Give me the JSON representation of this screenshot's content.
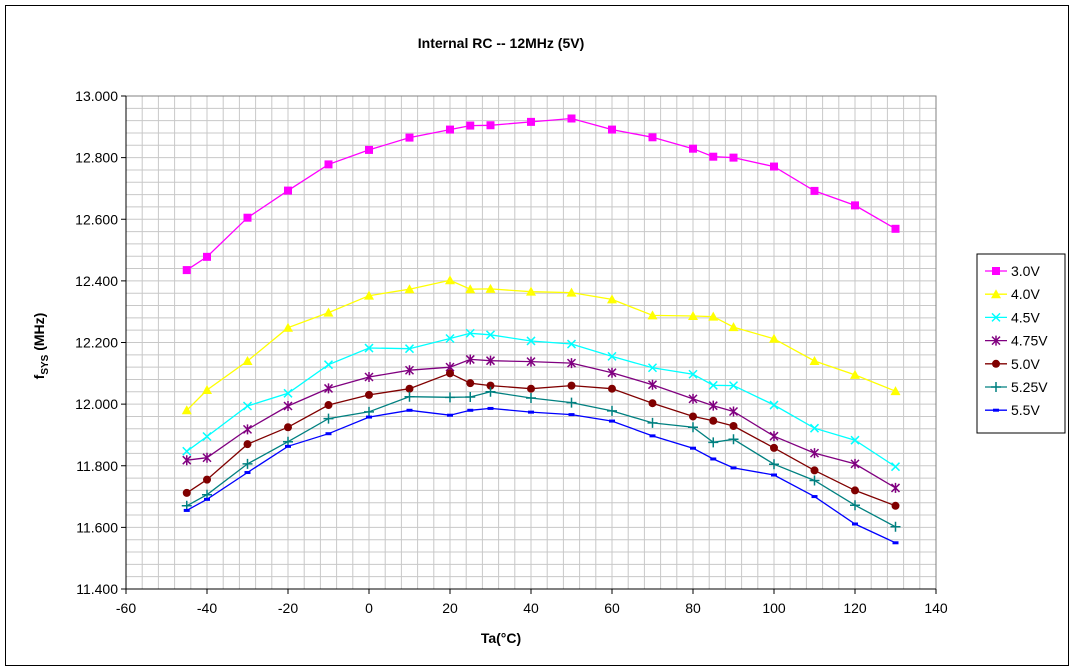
{
  "chart_data": {
    "type": "line",
    "title": "Internal RC -- 12MHz (5V)",
    "xlabel": "Ta(°C)",
    "ylabel": "fSYS (MHz)",
    "ylabel_main": "f",
    "ylabel_sub": "SYS",
    "ylabel_unit": " (MHz)",
    "xlim": [
      -60,
      140
    ],
    "ylim": [
      11.4,
      13.0
    ],
    "x_ticks": [
      -60,
      -40,
      -20,
      0,
      20,
      40,
      60,
      80,
      100,
      120,
      140
    ],
    "x_tick_labels": [
      "-60",
      "-40",
      "-20",
      "0",
      "20",
      "40",
      "60",
      "80",
      "100",
      "120",
      "140"
    ],
    "y_ticks": [
      11.4,
      11.6,
      11.8,
      12.0,
      12.2,
      12.4,
      12.6,
      12.8,
      13.0
    ],
    "y_tick_labels": [
      "11.400",
      "11.600",
      "11.800",
      "12.000",
      "12.200",
      "12.400",
      "12.600",
      "12.800",
      "13.000"
    ],
    "grid": true,
    "legend_position": "right",
    "x": [
      -45,
      -40,
      -30,
      -20,
      -10,
      0,
      10,
      20,
      25,
      30,
      40,
      50,
      60,
      70,
      80,
      85,
      90,
      100,
      110,
      120,
      130
    ],
    "series": [
      {
        "name": "3.0V",
        "color": "#ff00ff",
        "marker": "square",
        "values": [
          12.435,
          12.478,
          12.605,
          12.693,
          12.778,
          12.825,
          12.865,
          12.891,
          12.904,
          12.905,
          12.916,
          12.927,
          12.891,
          12.866,
          12.829,
          12.803,
          12.8,
          12.771,
          12.692,
          12.645,
          12.569
        ]
      },
      {
        "name": "4.0V",
        "color": "#ffff00",
        "marker": "triangle",
        "values": [
          11.98,
          12.046,
          12.14,
          12.248,
          12.297,
          12.352,
          12.373,
          12.402,
          12.373,
          12.374,
          12.365,
          12.362,
          12.34,
          12.288,
          12.286,
          12.284,
          12.25,
          12.212,
          12.14,
          12.095,
          12.042
        ]
      },
      {
        "name": "4.5V",
        "color": "#00ffff",
        "marker": "x",
        "values": [
          11.847,
          11.895,
          11.994,
          12.035,
          12.128,
          12.182,
          12.18,
          12.213,
          12.23,
          12.225,
          12.205,
          12.195,
          12.155,
          12.118,
          12.097,
          12.061,
          12.06,
          11.997,
          11.922,
          11.883,
          11.797
        ]
      },
      {
        "name": "4.75V",
        "color": "#800080",
        "marker": "star",
        "values": [
          11.818,
          11.826,
          11.918,
          11.994,
          12.051,
          12.088,
          12.11,
          12.12,
          12.145,
          12.141,
          12.138,
          12.133,
          12.102,
          12.063,
          12.017,
          11.995,
          11.976,
          11.896,
          11.841,
          11.806,
          11.728
        ]
      },
      {
        "name": "5.0V",
        "color": "#800000",
        "marker": "circle",
        "values": [
          11.712,
          11.755,
          11.87,
          11.925,
          11.997,
          12.03,
          12.05,
          12.1,
          12.068,
          12.06,
          12.05,
          12.06,
          12.05,
          12.003,
          11.96,
          11.946,
          11.929,
          11.858,
          11.785,
          11.72,
          11.67
        ]
      },
      {
        "name": "5.25V",
        "color": "#008080",
        "marker": "plus",
        "values": [
          11.67,
          11.706,
          11.806,
          11.878,
          11.953,
          11.975,
          12.024,
          12.022,
          12.023,
          12.04,
          12.02,
          12.005,
          11.978,
          11.939,
          11.925,
          11.876,
          11.886,
          11.805,
          11.752,
          11.672,
          11.602
        ]
      },
      {
        "name": "5.5V",
        "color": "#0000ff",
        "marker": "dash",
        "values": [
          11.655,
          11.691,
          11.778,
          11.863,
          11.904,
          11.958,
          11.98,
          11.964,
          11.98,
          11.986,
          11.974,
          11.966,
          11.945,
          11.897,
          11.857,
          11.822,
          11.793,
          11.77,
          11.7,
          11.611,
          11.55
        ]
      }
    ]
  }
}
